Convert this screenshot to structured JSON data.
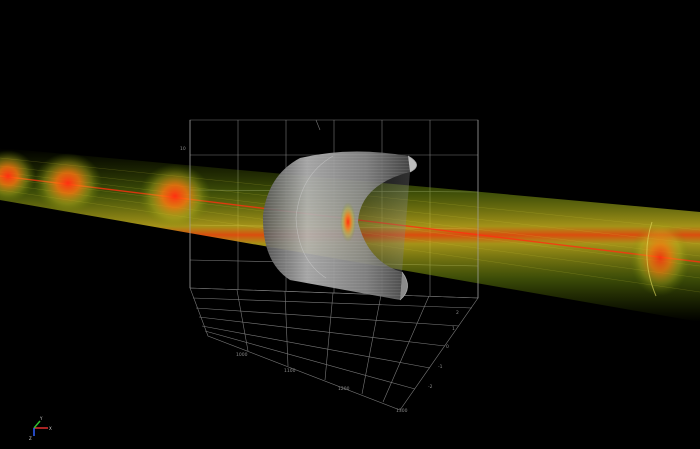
{
  "scene": {
    "background": "#000000",
    "beam_color_outer": "#7a9a10",
    "beam_color_mid": "#d8c020",
    "beam_color_core": "#ff3a10",
    "cylinder_color": "#9a9a9a",
    "grid_color": "#7a7a7a"
  },
  "floor_ticks_x": [
    "1000",
    "1100",
    "1200",
    "1300"
  ],
  "floor_ticks_y": [
    "2",
    "1",
    "0",
    "-1",
    "-2"
  ],
  "wall_tick_top": "10",
  "orientation_widget": {
    "x_label": "X",
    "y_label": "Y",
    "z_label": "Z",
    "x_color": "#e03030",
    "y_color": "#30c030",
    "z_color": "#3060ff"
  }
}
